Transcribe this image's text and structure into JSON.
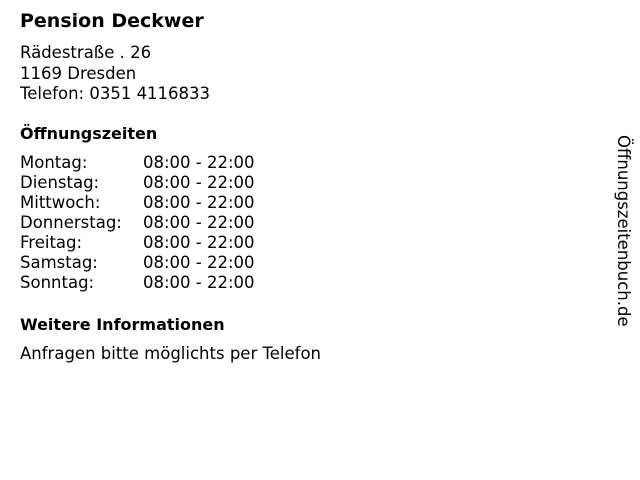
{
  "name": "Pension Deckwer",
  "address": {
    "street": "Rädestraße . 26",
    "city": "1169 Dresden",
    "phone": "Telefon: 0351 4116833"
  },
  "opening_hours": {
    "heading": "Öffnungszeiten",
    "rows": [
      {
        "day": "Montag:",
        "time": "08:00 - 22:00"
      },
      {
        "day": "Dienstag:",
        "time": "08:00 - 22:00"
      },
      {
        "day": "Mittwoch:",
        "time": "08:00 - 22:00"
      },
      {
        "day": "Donnerstag:",
        "time": "08:00 - 22:00"
      },
      {
        "day": "Freitag:",
        "time": "08:00 - 22:00"
      },
      {
        "day": "Samstag:",
        "time": "08:00 - 22:00"
      },
      {
        "day": "Sonntag:",
        "time": "08:00 - 22:00"
      }
    ]
  },
  "more_info": {
    "heading": "Weitere Informationen",
    "text": "Anfragen bitte möglichts per Telefon"
  },
  "watermark": "Öffnungszeitenbuch.de"
}
